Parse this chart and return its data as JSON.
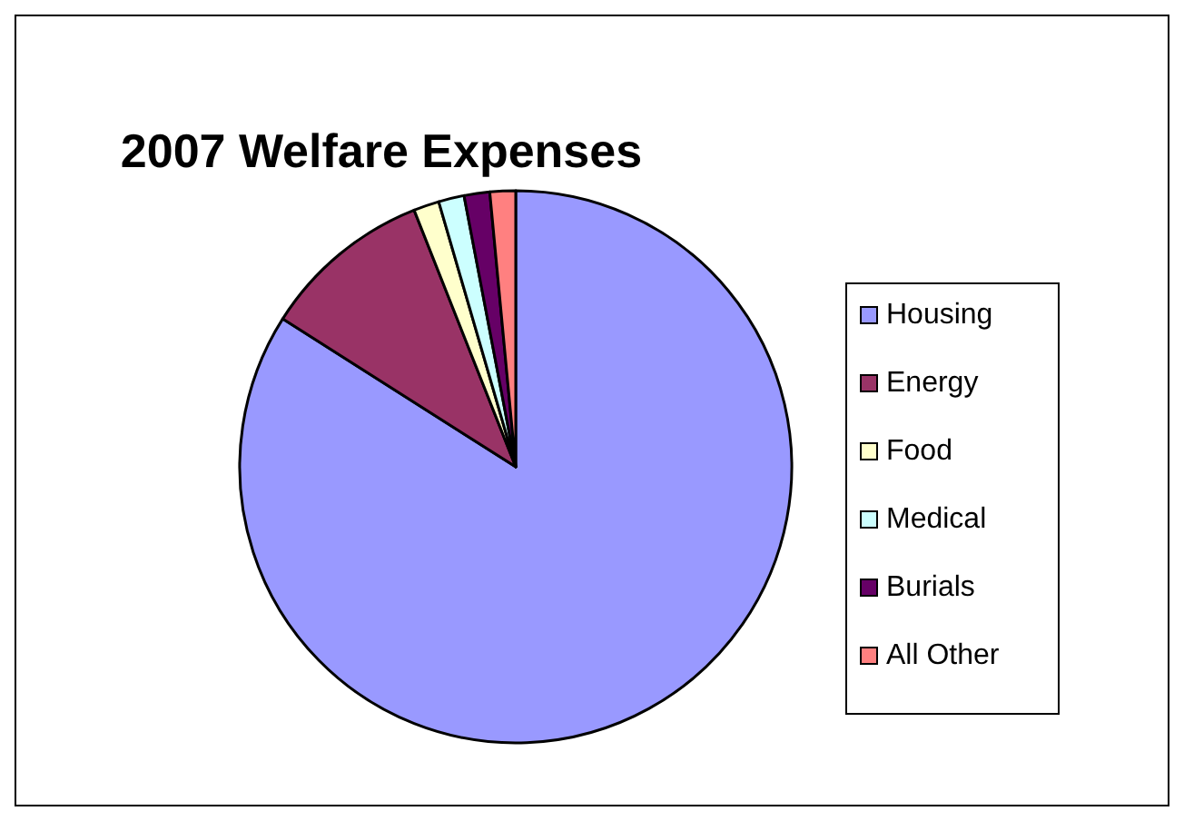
{
  "chart_data": {
    "type": "pie",
    "title": "2007 Welfare Expenses",
    "categories": [
      "Housing",
      "Energy",
      "Food",
      "Medical",
      "Burials",
      "All Other"
    ],
    "values": [
      84,
      10,
      1.5,
      1.5,
      1.5,
      1.5
    ],
    "colors": [
      "#9999ff",
      "#993366",
      "#ffffcc",
      "#ccffff",
      "#660066",
      "#ff8080"
    ],
    "legend": "right"
  }
}
